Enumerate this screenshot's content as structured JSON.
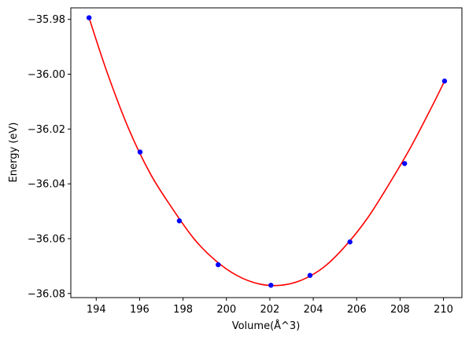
{
  "chart_data": {
    "type": "scatter",
    "title": "",
    "xlabel": "Volume(Å^3)",
    "ylabel": "Energy (eV)",
    "xlim": [
      192.83,
      210.85
    ],
    "ylim": [
      -36.0815,
      -35.9758
    ],
    "xticks": [
      194,
      196,
      198,
      200,
      202,
      204,
      206,
      208,
      210
    ],
    "yticks": [
      -35.98,
      -36.0,
      -36.02,
      -36.04,
      -36.06,
      -36.08
    ],
    "ytick_labels": [
      "−35.98",
      "−36.00",
      "−36.02",
      "−36.04",
      "−36.06",
      "−36.08"
    ],
    "grid": false,
    "series": [
      {
        "kind": "points",
        "color": "#0000ff",
        "x": [
          193.67,
          196.02,
          197.83,
          199.62,
          202.05,
          203.85,
          205.69,
          208.21,
          210.05
        ],
        "y": [
          -35.9794,
          -36.0284,
          -36.0535,
          -36.0695,
          -36.077,
          -36.0734,
          -36.0612,
          -36.0326,
          -36.0025
        ]
      },
      {
        "kind": "fit-curve",
        "color": "#ff0000",
        "x": [
          193.67,
          194.5,
          195.5,
          196.5,
          197.5,
          198.5,
          199.5,
          200.5,
          201.5,
          202.5,
          203.5,
          204.5,
          205.5,
          206.5,
          207.5,
          208.5,
          209.5,
          210.05
        ],
        "y": [
          -35.9794,
          -35.9993,
          -36.02,
          -36.0364,
          -36.0489,
          -36.06,
          -36.068,
          -36.0735,
          -36.0765,
          -36.077,
          -36.075,
          -36.0703,
          -36.0625,
          -36.0525,
          -36.04,
          -36.0265,
          -36.0113,
          -36.0025
        ]
      }
    ]
  }
}
